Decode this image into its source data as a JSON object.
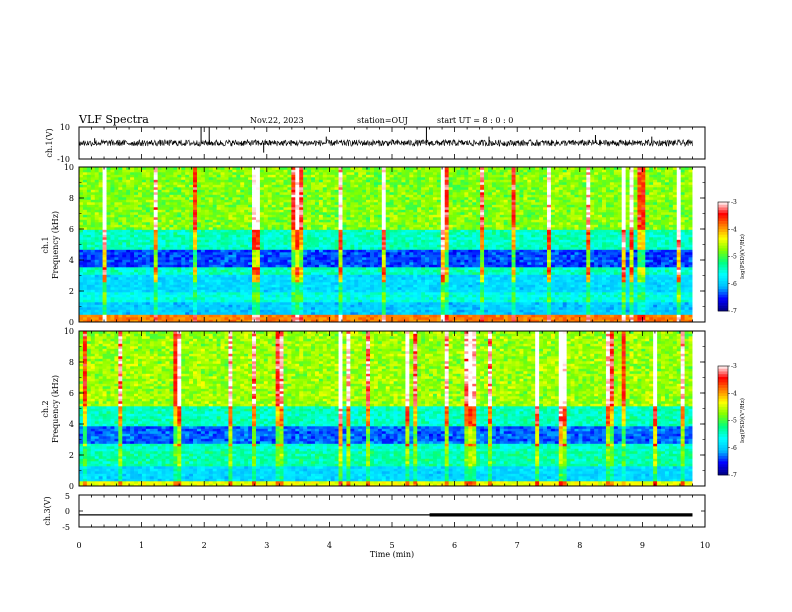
{
  "header": {
    "title": "VLF Spectra",
    "date": "Nov.22, 2023",
    "station": "station=OUJ",
    "start_ut": "start UT = 8 : 0 : 0"
  },
  "colors": {
    "waveform": "#000000",
    "colormap": [
      "#000080",
      "#0000ff",
      "#00bfff",
      "#00ffff",
      "#00ff7f",
      "#7fff00",
      "#ffff00",
      "#ff8000",
      "#ff0000",
      "#ffffff"
    ]
  },
  "chart_data": [
    {
      "type": "line",
      "ylabel": "ch.1(V)",
      "ylim": [
        -10,
        10
      ],
      "yticks": [
        "10",
        "-10"
      ],
      "baseline": 0,
      "noise_amplitude": 2,
      "spikes": [
        {
          "x": 0.25,
          "y": 3
        },
        {
          "x": 1.95,
          "y": 10
        },
        {
          "x": 2.08,
          "y": 10
        },
        {
          "x": 2.95,
          "y": -6
        },
        {
          "x": 3.95,
          "y": 4
        },
        {
          "x": 5.55,
          "y": 10
        },
        {
          "x": 6.55,
          "y": 4
        },
        {
          "x": 8.25,
          "y": 5
        },
        {
          "x": 9.15,
          "y": 4
        }
      ]
    },
    {
      "type": "heatmap",
      "ylabel_line1": "ch.1",
      "ylabel_line2": "Frequency  (kHz)",
      "ylim": [
        0,
        10
      ],
      "yticks": [
        "0",
        "2",
        "4",
        "6",
        "8",
        "10"
      ],
      "colorbar": {
        "label": "log(PSD)(V²/Hz)",
        "range": [
          -7,
          -3
        ],
        "ticks": [
          "-3",
          "-4",
          "-5",
          "-6",
          "-7"
        ]
      }
    },
    {
      "type": "heatmap",
      "ylabel_line1": "ch.2",
      "ylabel_line2": "Frequency  (kHz)",
      "ylim": [
        0,
        10
      ],
      "yticks": [
        "0",
        "2",
        "4",
        "6",
        "8",
        "10"
      ],
      "colorbar": {
        "label": "log(PSD)(V²/Hz)",
        "range": [
          -7,
          -3
        ],
        "ticks": [
          "-3",
          "-4",
          "-5",
          "-6",
          "-7"
        ]
      }
    },
    {
      "type": "line",
      "ylabel": "ch.3(V)",
      "ylim": [
        -5,
        5
      ],
      "yticks": [
        "5",
        "0",
        "-5"
      ],
      "baseline": -1.2,
      "thick_from_x": 5.6,
      "x_end": 9.8
    }
  ],
  "xaxis": {
    "label": "Time  (min)",
    "range": [
      0,
      10
    ],
    "ticks": [
      "0",
      "1",
      "2",
      "3",
      "4",
      "5",
      "6",
      "7",
      "8",
      "9",
      "10"
    ],
    "data_end": 9.8
  }
}
